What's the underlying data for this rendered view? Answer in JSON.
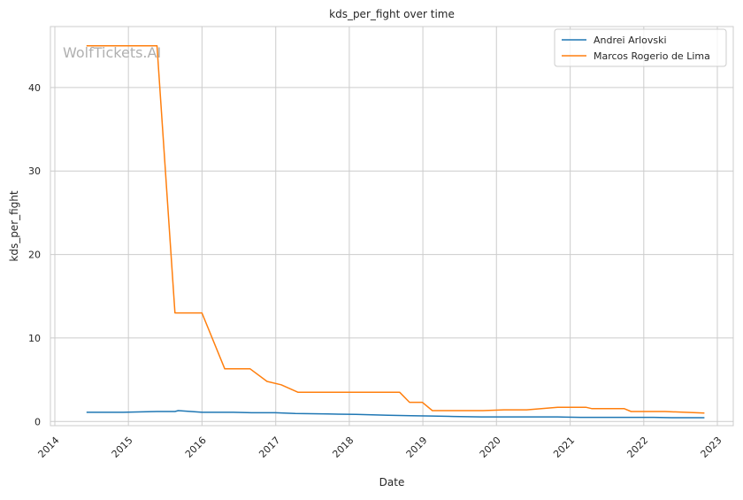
{
  "chart_data": {
    "type": "line",
    "title": "kds_per_fight over time",
    "xlabel": "Date",
    "ylabel": "kds_per_fight",
    "watermark": "WolfTickets.AI",
    "x_ticks": [
      "2014",
      "2015",
      "2016",
      "2017",
      "2018",
      "2019",
      "2020",
      "2021",
      "2022",
      "2023"
    ],
    "y_ticks": [
      "0",
      "10",
      "20",
      "30",
      "40"
    ],
    "xlim": [
      "2014-01-01",
      "2023-01-01"
    ],
    "ylim": [
      -0.5,
      47.3
    ],
    "grid": true,
    "legend_position": "top-right",
    "series": [
      {
        "name": "Andrei Arlovski",
        "color": "#1f77b4",
        "points": [
          [
            "2014-06-07",
            1.1
          ],
          [
            "2014-12-06",
            1.1
          ],
          [
            "2015-05-23",
            1.2
          ],
          [
            "2015-08-20",
            1.2
          ],
          [
            "2015-09-05",
            1.3
          ],
          [
            "2016-01-02",
            1.1
          ],
          [
            "2016-06-04",
            1.1
          ],
          [
            "2016-09-03",
            1.05
          ],
          [
            "2016-12-30",
            1.05
          ],
          [
            "2017-04-08",
            0.95
          ],
          [
            "2017-09-16",
            0.9
          ],
          [
            "2018-02-03",
            0.85
          ],
          [
            "2018-07-14",
            0.75
          ],
          [
            "2018-11-03",
            0.7
          ],
          [
            "2019-02-17",
            0.65
          ],
          [
            "2019-06-01",
            0.6
          ],
          [
            "2019-10-18",
            0.55
          ],
          [
            "2020-05-09",
            0.55
          ],
          [
            "2020-10-31",
            0.55
          ],
          [
            "2021-02-20",
            0.5
          ],
          [
            "2021-09-04",
            0.5
          ],
          [
            "2022-02-19",
            0.5
          ],
          [
            "2022-05-21",
            0.45
          ],
          [
            "2022-10-29",
            0.45
          ]
        ]
      },
      {
        "name": "Marcos Rogerio de Lima",
        "color": "#ff7f0e",
        "points": [
          [
            "2014-06-07",
            45
          ],
          [
            "2015-05-23",
            45
          ],
          [
            "2015-08-20",
            13
          ],
          [
            "2016-01-01",
            13
          ],
          [
            "2016-04-23",
            6.3
          ],
          [
            "2016-08-27",
            6.3
          ],
          [
            "2016-11-19",
            4.8
          ],
          [
            "2017-01-28",
            4.4
          ],
          [
            "2017-04-22",
            3.5
          ],
          [
            "2017-10-07",
            3.5
          ],
          [
            "2018-09-08",
            3.5
          ],
          [
            "2018-10-27",
            2.3
          ],
          [
            "2018-12-29",
            2.3
          ],
          [
            "2019-02-17",
            1.3
          ],
          [
            "2019-10-26",
            1.3
          ],
          [
            "2020-02-08",
            1.4
          ],
          [
            "2020-05-30",
            1.4
          ],
          [
            "2020-10-31",
            1.7
          ],
          [
            "2021-03-20",
            1.7
          ],
          [
            "2021-04-17",
            1.55
          ],
          [
            "2021-09-25",
            1.55
          ],
          [
            "2021-10-30",
            1.2
          ],
          [
            "2022-04-16",
            1.2
          ],
          [
            "2022-10-29",
            1.0
          ]
        ]
      }
    ]
  }
}
